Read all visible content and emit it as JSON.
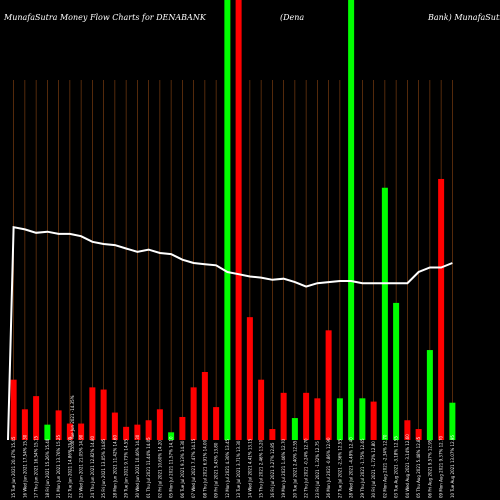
{
  "chart_data": {
    "type": "bar",
    "title": "MunafaSutra  Money Flow  Charts for DENABANK",
    "title_right": "(Dena",
    "title_far": "Bank) MunafaSutra.com",
    "colors": {
      "up": "#00ff00",
      "down": "#ff0000",
      "line": "#ffffff",
      "grid": "#8b4513",
      "background": "#000000"
    },
    "grid": true,
    "categories": [
      "15 Tue Jun 2021 20.47% 15.45",
      "16 Wed Jun 2021 17.54% 15.30",
      "17 Thu Jun 2021 16.54% 15.15",
      "18 Fri Jun 2021 15.26% 15.40",
      "21 Mon Jun 2021 13.76% 15.25",
      "22 Tue Jun 2021 14.86% 15.05",
      "23 Wed Jun 2021 21.05% 14.90",
      "24 Thu Jun 2021 12.82% 14.80",
      "25 Fri Jun 2021 13.05% 14.85",
      "28 Mon Jun 2021 11.42% 14.60",
      "29 Tue Jun 2021 9.73% 14.55",
      "30 Wed Jun 2021 10.46% 14.30",
      "01 Thu Jul 2021 11.44% 14.05",
      "02 Fri Jul 2021 10.60% 14.20",
      "05 Mon Jul 2021 11.57% 14.10",
      "06 Tue Jul 2021 9.13% 14.30",
      "07 Wed Jul 2021 7.47% 14.15",
      "08 Thu Jul 2021 6.91% 14.00",
      "09 Fri Jul 2021 5.43% 13.80",
      "12 Mon Jul 2021 4.30% 13.45",
      "13 Tue Jul 2021 3.71% 13.30",
      "14 Wed Jul 2021 4.41% 13.15",
      "15 Thu Jul 2021 2.46% 13.20",
      "16 Fri Jul 2021 3.27% 12.85",
      "19 Mon Jul 2021 1.46% 12.70",
      "20 Tue Jul 2021 2.40% 12.55",
      "22 Thu Jul 2021 -0.24% 12.70",
      "23 Fri Jul 2021 -1.32% 12.75",
      "26 Mon Jul 2021 -0.86% 12.90",
      "27 Tue Jul 2021 -2.36% 12.55",
      "28 Wed Jul 2021 -4.49% 12.40",
      "29 Thu Jul 2021 -1.75% 12.65",
      "30 Fri Jul 2021 -1.72% 12.80",
      "02 Mon Aug 2021 -2.34% 12.70",
      "03 Tue Aug 2021 -3.18% 12.55",
      "04 Wed Aug 2021 -3.14% 12.60",
      "05 Thu Aug 2021 5.48% 12.85",
      "06 Fri Aug 2021 9.57% 12.95",
      "09 Mon Aug 2021 9.37% 12.70",
      "10 Tue Aug 2021 13.07% 12.95"
    ],
    "series": [
      {
        "values": [
          55,
          28,
          40,
          14,
          27,
          15,
          15,
          48,
          46,
          25,
          12,
          14,
          18,
          28,
          7,
          21,
          48,
          62,
          30,
          310,
          310,
          112,
          55,
          10,
          43,
          20,
          43,
          38,
          100,
          38,
          310,
          38,
          35,
          230,
          125,
          18,
          10,
          82,
          238,
          34
        ]
      },
      {
        "type": "line",
        "values": [
          190,
          188,
          185,
          186,
          184,
          184,
          182,
          177,
          175,
          174,
          171,
          168,
          170,
          167,
          166,
          161,
          158,
          157,
          156,
          150,
          148,
          146,
          145,
          143,
          144,
          141,
          137,
          140,
          141,
          142,
          142,
          140,
          140,
          140,
          140,
          140,
          150,
          154,
          154,
          158
        ]
      }
    ],
    "directions": [
      "down",
      "down",
      "down",
      "up",
      "down",
      "down",
      "down",
      "down",
      "down",
      "down",
      "down",
      "down",
      "down",
      "down",
      "up",
      "down",
      "down",
      "down",
      "down",
      "up",
      "down",
      "down",
      "down",
      "down",
      "down",
      "up",
      "down",
      "down",
      "down",
      "up",
      "up",
      "up",
      "down",
      "up",
      "up",
      "down",
      "down",
      "up",
      "down",
      "up"
    ],
    "extra_tick": "15.00 Tue Jun 2021 -14.35%"
  }
}
